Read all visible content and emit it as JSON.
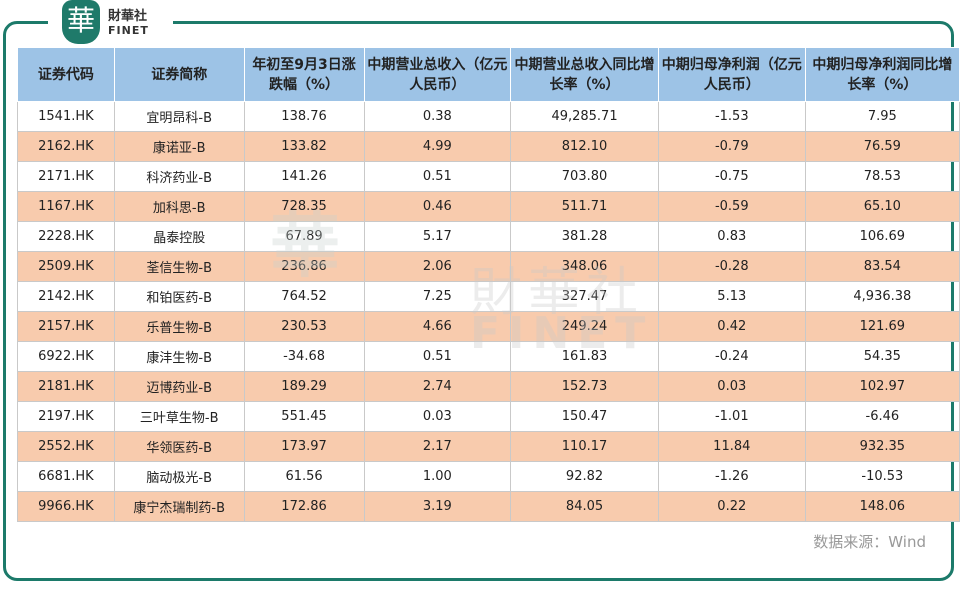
{
  "logo": {
    "cn": "財華社",
    "en": "FINET",
    "mark": "華"
  },
  "watermark": {
    "cn": "財華社",
    "en": "FINET"
  },
  "columns": [
    "证券代码",
    "证券简称",
    "年初至9月3日涨跌幅（%）",
    "中期营业总收入（亿元人民币）",
    "中期营业总收入同比增长率（%）",
    "中期归母净利润（亿元人民币）",
    "中期归母净利润同比增长率（%）"
  ],
  "rows": [
    [
      "1541.HK",
      "宜明昂科-B",
      "138.76",
      "0.38",
      "49,285.71",
      "-1.53",
      "7.95"
    ],
    [
      "2162.HK",
      "康诺亚-B",
      "133.82",
      "4.99",
      "812.10",
      "-0.79",
      "76.59"
    ],
    [
      "2171.HK",
      "科济药业-B",
      "141.26",
      "0.51",
      "703.80",
      "-0.75",
      "78.53"
    ],
    [
      "1167.HK",
      "加科思-B",
      "728.35",
      "0.46",
      "511.71",
      "-0.59",
      "65.10"
    ],
    [
      "2228.HK",
      "晶泰控股",
      "67.89",
      "5.17",
      "381.28",
      "0.83",
      "106.69"
    ],
    [
      "2509.HK",
      "荃信生物-B",
      "236.86",
      "2.06",
      "348.06",
      "-0.28",
      "83.54"
    ],
    [
      "2142.HK",
      "和铂医药-B",
      "764.52",
      "7.25",
      "327.47",
      "5.13",
      "4,936.38"
    ],
    [
      "2157.HK",
      "乐普生物-B",
      "230.53",
      "4.66",
      "249.24",
      "0.42",
      "121.69"
    ],
    [
      "6922.HK",
      "康沣生物-B",
      "-34.68",
      "0.51",
      "161.83",
      "-0.24",
      "54.35"
    ],
    [
      "2181.HK",
      "迈博药业-B",
      "189.29",
      "2.74",
      "152.73",
      "0.03",
      "102.97"
    ],
    [
      "2197.HK",
      "三叶草生物-B",
      "551.45",
      "0.03",
      "150.47",
      "-1.01",
      "-6.46"
    ],
    [
      "2552.HK",
      "华领医药-B",
      "173.97",
      "2.17",
      "110.17",
      "11.84",
      "932.35"
    ],
    [
      "6681.HK",
      "脑动极光-B",
      "61.56",
      "1.00",
      "92.82",
      "-1.26",
      "-10.53"
    ],
    [
      "9966.HK",
      "康宁杰瑞制药-B",
      "172.86",
      "3.19",
      "84.05",
      "0.22",
      "148.06"
    ]
  ],
  "source": "数据来源：Wind"
}
